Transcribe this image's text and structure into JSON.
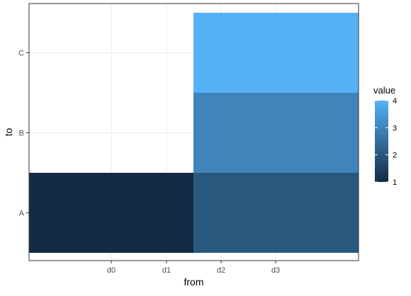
{
  "chart_data": {
    "type": "heatmap",
    "xlabel": "from",
    "ylabel": "to",
    "x_ticks": [
      "d0",
      "d1",
      "d2",
      "d3"
    ],
    "y_categories": [
      "A",
      "B",
      "C"
    ],
    "tiles": [
      {
        "x_from": "d0",
        "x_to": "d1",
        "y": "A",
        "value": 1
      },
      {
        "x_from": "d2",
        "x_to": "d3",
        "y": "A",
        "value": 2
      },
      {
        "x_from": "d2",
        "x_to": "d3",
        "y": "B",
        "value": 3
      },
      {
        "x_from": "d2",
        "x_to": "d3",
        "y": "C",
        "value": 4
      }
    ],
    "legend": {
      "title": "value",
      "placement": "right",
      "breaks": [
        1,
        2,
        3,
        4
      ],
      "low_color": "#132B43",
      "high_color": "#56B1F7"
    },
    "grid": true,
    "panel_border": true
  }
}
